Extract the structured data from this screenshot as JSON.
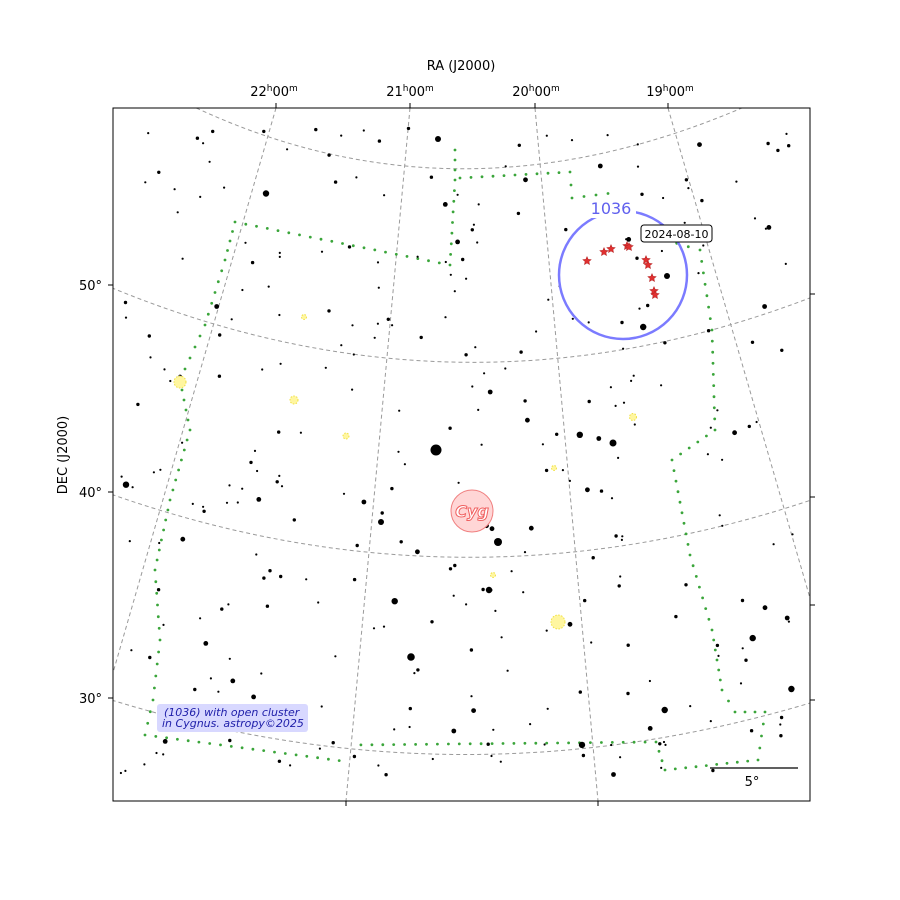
{
  "axes": {
    "ra_title": "RA (J2000)",
    "dec_title": "DEC (J2000)",
    "ra_ticks": [
      {
        "h": "22",
        "m": "00"
      },
      {
        "h": "21",
        "m": "00"
      },
      {
        "h": "20",
        "m": "00"
      },
      {
        "h": "19",
        "m": "00"
      }
    ],
    "dec_ticks": [
      "50°",
      "40°",
      "30°"
    ],
    "ra_units": {
      "hour": "h",
      "minute": "m"
    }
  },
  "constellation": {
    "abbr": "Cyg"
  },
  "target": {
    "label": "1036",
    "date": "2024-08-10",
    "color": "#7b7bff",
    "track_color": "#e03030"
  },
  "scale_bar": {
    "label": "5°"
  },
  "caption": {
    "line1": "(1036) with open cluster",
    "line2": "in Cygnus. astropy©2025"
  },
  "colors": {
    "boundary": "#3aa53a",
    "grid": "#9a9a9a",
    "stars": "#000000",
    "deep_sky": "#f0e040",
    "caption_bg": "#d8d8ff",
    "caption_text": "#2020aa"
  }
}
